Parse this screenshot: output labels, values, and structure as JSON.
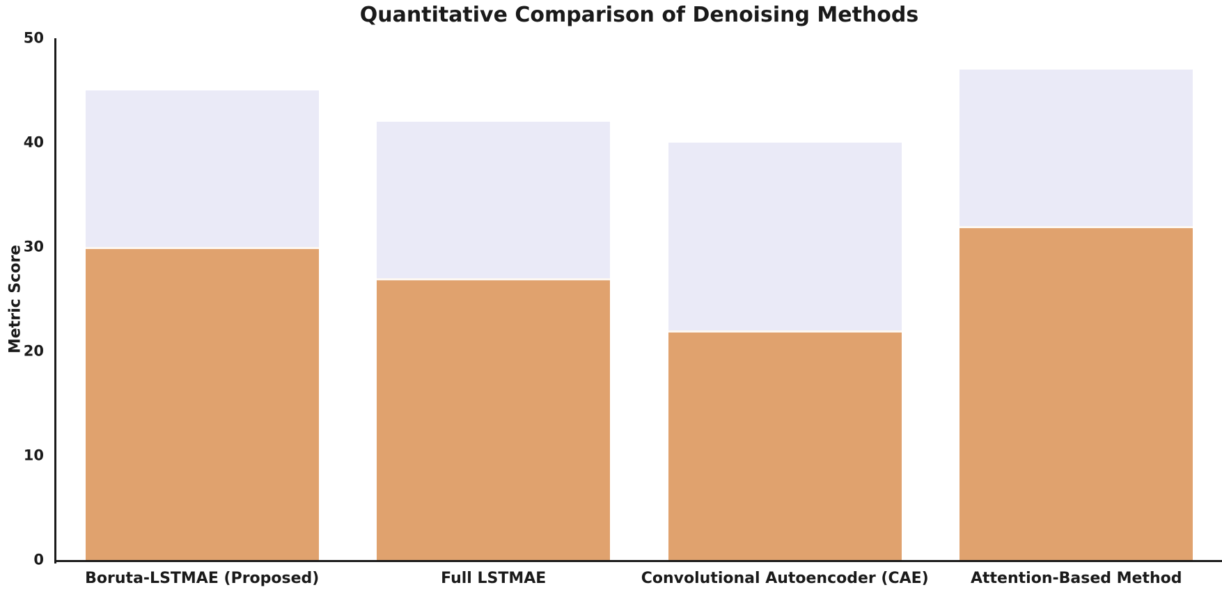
{
  "chart_data": {
    "type": "bar",
    "bar_style": "overlapping",
    "title": "Quantitative Comparison of Denoising Methods",
    "xlabel": "",
    "ylabel": "Metric Score",
    "categories": [
      "Boruta-LSTMAE (Proposed)",
      "Full LSTMAE",
      "Convolutional Autoencoder (CAE)",
      "Attention-Based Method"
    ],
    "series": [
      {
        "name": "background-lavender-bar",
        "color": "#eaeaf7",
        "values": [
          45,
          42,
          40,
          47
        ]
      },
      {
        "name": "foreground-orange-bar",
        "color": "#e0a26e",
        "values": [
          30,
          27,
          22,
          32
        ]
      }
    ],
    "ylim": [
      0,
      50
    ],
    "yticks": [
      0,
      10,
      20,
      30,
      40,
      50
    ],
    "grid": false,
    "legend": "none",
    "colors": {
      "axis": "#1a1a1a",
      "text": "#1a1a1a",
      "bar_edge_line": "#fdf8f2",
      "background": "#ffffff"
    }
  }
}
